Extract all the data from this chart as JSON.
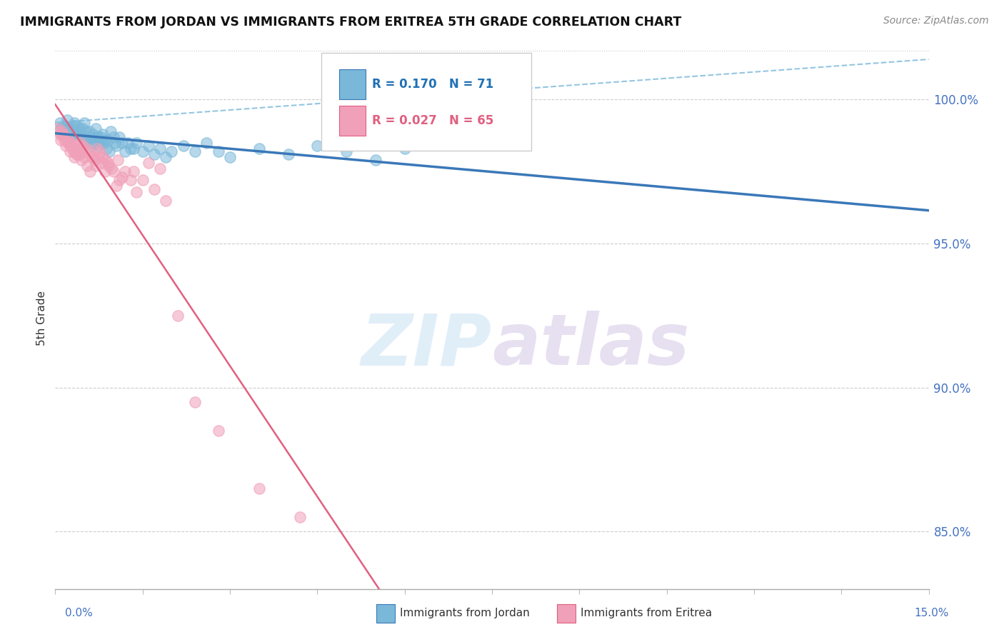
{
  "title": "IMMIGRANTS FROM JORDAN VS IMMIGRANTS FROM ERITREA 5TH GRADE CORRELATION CHART",
  "source": "Source: ZipAtlas.com",
  "ylabel": "5th Grade",
  "x_min": 0.0,
  "x_max": 15.0,
  "y_min": 83.0,
  "y_max": 101.8,
  "y_ticks": [
    85.0,
    90.0,
    95.0,
    100.0
  ],
  "legend1_r": "0.170",
  "legend1_n": "71",
  "legend2_r": "0.027",
  "legend2_n": "65",
  "color_jordan": "#7ab8d9",
  "color_eritrea": "#f0a0b8",
  "color_jordan_line": "#3a78b8",
  "color_eritrea_line": "#e06080",
  "color_jordan_dark": "#3a78b8",
  "color_eritrea_dark": "#e06080",
  "background_color": "#ffffff",
  "jordan_x": [
    0.08,
    0.1,
    0.12,
    0.15,
    0.18,
    0.2,
    0.22,
    0.25,
    0.28,
    0.3,
    0.33,
    0.35,
    0.38,
    0.4,
    0.42,
    0.45,
    0.48,
    0.5,
    0.52,
    0.55,
    0.58,
    0.6,
    0.62,
    0.65,
    0.68,
    0.7,
    0.72,
    0.75,
    0.78,
    0.8,
    0.82,
    0.85,
    0.88,
    0.9,
    0.95,
    1.0,
    1.05,
    1.1,
    1.15,
    1.2,
    1.25,
    1.3,
    1.4,
    1.5,
    1.6,
    1.7,
    1.8,
    1.9,
    2.0,
    2.2,
    2.4,
    2.6,
    2.8,
    3.0,
    3.5,
    4.0,
    4.5,
    5.0,
    5.5,
    6.0,
    0.13,
    0.23,
    0.32,
    0.43,
    0.53,
    0.63,
    0.73,
    0.83,
    0.93,
    1.03,
    1.35
  ],
  "jordan_y": [
    99.2,
    99.0,
    98.8,
    99.1,
    98.9,
    99.3,
    99.0,
    98.7,
    99.0,
    98.8,
    99.2,
    98.9,
    99.1,
    98.8,
    99.0,
    98.7,
    99.0,
    99.2,
    98.9,
    98.6,
    98.9,
    98.7,
    98.5,
    98.8,
    98.6,
    99.0,
    98.7,
    98.4,
    98.7,
    98.5,
    98.8,
    98.6,
    98.3,
    98.6,
    98.9,
    98.7,
    98.4,
    98.7,
    98.5,
    98.2,
    98.5,
    98.3,
    98.5,
    98.2,
    98.4,
    98.1,
    98.3,
    98.0,
    98.2,
    98.4,
    98.2,
    98.5,
    98.2,
    98.0,
    98.3,
    98.1,
    98.4,
    98.2,
    97.9,
    98.3,
    99.0,
    98.8,
    99.1,
    98.8,
    98.6,
    98.4,
    98.7,
    98.5,
    98.2,
    98.5,
    98.3
  ],
  "eritrea_x": [
    0.05,
    0.08,
    0.1,
    0.12,
    0.15,
    0.18,
    0.2,
    0.22,
    0.25,
    0.28,
    0.3,
    0.33,
    0.35,
    0.38,
    0.4,
    0.42,
    0.45,
    0.48,
    0.5,
    0.55,
    0.6,
    0.65,
    0.7,
    0.75,
    0.8,
    0.85,
    0.9,
    1.0,
    1.1,
    1.2,
    1.3,
    1.4,
    1.5,
    1.7,
    1.9,
    2.1,
    2.4,
    2.8,
    3.5,
    4.2,
    0.13,
    0.23,
    0.32,
    0.43,
    0.53,
    0.63,
    0.72,
    0.82,
    0.92,
    1.05,
    1.15,
    1.35,
    1.6,
    1.8,
    0.07,
    0.16,
    0.27,
    0.37,
    0.47,
    0.57,
    0.67,
    0.77,
    0.87,
    0.97,
    1.07
  ],
  "eritrea_y": [
    99.0,
    98.8,
    98.6,
    98.9,
    98.7,
    98.4,
    98.7,
    98.5,
    98.2,
    98.5,
    98.3,
    98.0,
    98.3,
    98.1,
    98.4,
    98.1,
    97.9,
    98.2,
    98.0,
    97.7,
    97.5,
    98.0,
    97.7,
    98.0,
    97.8,
    97.5,
    97.8,
    97.5,
    97.2,
    97.5,
    97.2,
    96.8,
    97.2,
    96.9,
    96.5,
    92.5,
    89.5,
    88.5,
    86.5,
    85.5,
    98.8,
    98.5,
    98.2,
    98.5,
    98.3,
    98.0,
    98.3,
    98.0,
    97.7,
    97.0,
    97.3,
    97.5,
    97.8,
    97.6,
    98.9,
    98.6,
    98.4,
    98.1,
    98.4,
    98.2,
    97.9,
    98.2,
    97.9,
    97.6,
    97.9
  ]
}
